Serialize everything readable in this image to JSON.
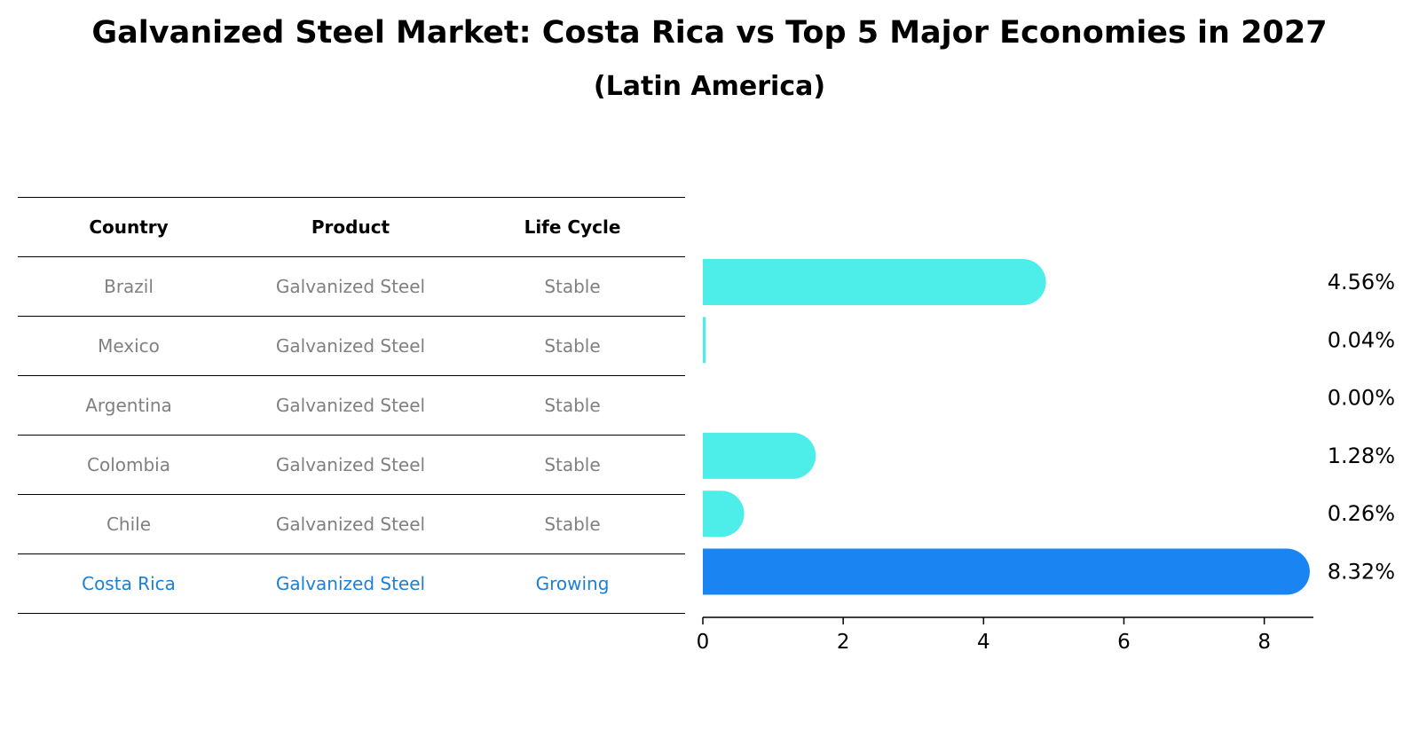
{
  "chart_data": {
    "type": "bar",
    "orientation": "horizontal",
    "title": "Galvanized Steel Market: Costa Rica vs Top 5 Major Economies in 2027",
    "subtitle": "(Latin America)",
    "table": {
      "columns": [
        "Country",
        "Product",
        "Life Cycle"
      ],
      "rows": [
        {
          "country": "Brazil",
          "product": "Galvanized Steel",
          "life_cycle": "Stable"
        },
        {
          "country": "Mexico",
          "product": "Galvanized Steel",
          "life_cycle": "Stable"
        },
        {
          "country": "Argentina",
          "product": "Galvanized Steel",
          "life_cycle": "Stable"
        },
        {
          "country": "Colombia",
          "product": "Galvanized Steel",
          "life_cycle": "Stable"
        },
        {
          "country": "Chile",
          "product": "Galvanized Steel",
          "life_cycle": "Stable"
        },
        {
          "country": "Costa Rica",
          "product": "Galvanized Steel",
          "life_cycle": "Growing"
        }
      ]
    },
    "categories": [
      "Brazil",
      "Mexico",
      "Argentina",
      "Colombia",
      "Chile",
      "Costa Rica"
    ],
    "values": [
      4.56,
      0.04,
      0.0,
      1.28,
      0.26,
      8.32
    ],
    "value_labels": [
      "4.56%",
      "0.04%",
      "0.00%",
      "1.28%",
      "0.26%",
      "8.32%"
    ],
    "highlight_index": 5,
    "colors": {
      "default": "#4deeea",
      "highlight": "#1a85f2"
    },
    "xlim": [
      0,
      8.7
    ],
    "xticks": [
      0,
      2,
      4,
      6,
      8
    ],
    "xlabel": "",
    "ylabel": ""
  }
}
